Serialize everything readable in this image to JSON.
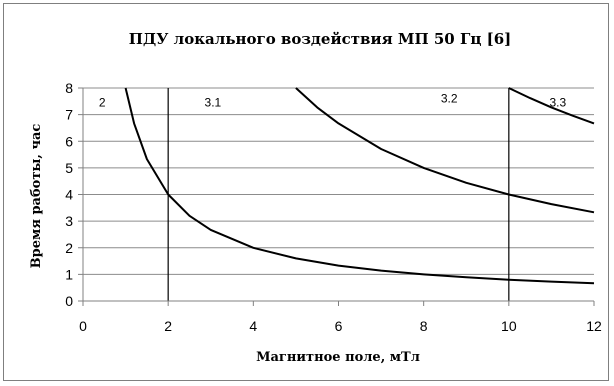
{
  "chart_data": {
    "type": "line",
    "title": "ПДУ локального воздействия МП 50 Гц [6]",
    "xlabel": "Магнитное поле, мТл",
    "ylabel": "Время работы, час",
    "xlim": [
      0,
      12
    ],
    "ylim": [
      0,
      8
    ],
    "xticks": [
      "0",
      "2",
      "4",
      "6",
      "8",
      "10",
      "12"
    ],
    "yticks": [
      "0",
      "1",
      "2",
      "3",
      "4",
      "5",
      "6",
      "7",
      "8"
    ],
    "grid": "horizontal",
    "series": [
      {
        "values": [
          [
            1.0,
            8
          ],
          [
            1.2,
            6.67
          ],
          [
            1.5,
            5.33
          ],
          [
            2,
            4
          ],
          [
            2.5,
            3.2
          ],
          [
            3,
            2.67
          ],
          [
            4,
            2
          ],
          [
            5,
            1.6
          ],
          [
            6,
            1.33
          ],
          [
            7,
            1.14
          ],
          [
            8,
            1
          ],
          [
            9,
            0.89
          ],
          [
            10,
            0.8
          ],
          [
            11,
            0.73
          ],
          [
            12,
            0.67
          ]
        ]
      },
      {
        "values": [
          [
            5,
            8
          ],
          [
            5.5,
            7.27
          ],
          [
            6,
            6.67
          ],
          [
            7,
            5.71
          ],
          [
            8,
            5
          ],
          [
            9,
            4.44
          ],
          [
            10,
            4
          ],
          [
            11,
            3.64
          ],
          [
            12,
            3.33
          ]
        ]
      },
      {
        "values": [
          [
            10,
            8
          ],
          [
            10.5,
            7.62
          ],
          [
            11,
            7.27
          ],
          [
            11.5,
            6.96
          ],
          [
            12,
            6.67
          ]
        ]
      }
    ],
    "region_dividers_x": [
      2,
      10
    ],
    "region_labels": [
      {
        "text": "2",
        "x": 0.45,
        "y": 7.45
      },
      {
        "text": "3.1",
        "x": 3.05,
        "y": 7.45
      },
      {
        "text": "3.2",
        "x": 8.6,
        "y": 7.6
      },
      {
        "text": "3.3",
        "x": 11.15,
        "y": 7.45
      }
    ]
  }
}
